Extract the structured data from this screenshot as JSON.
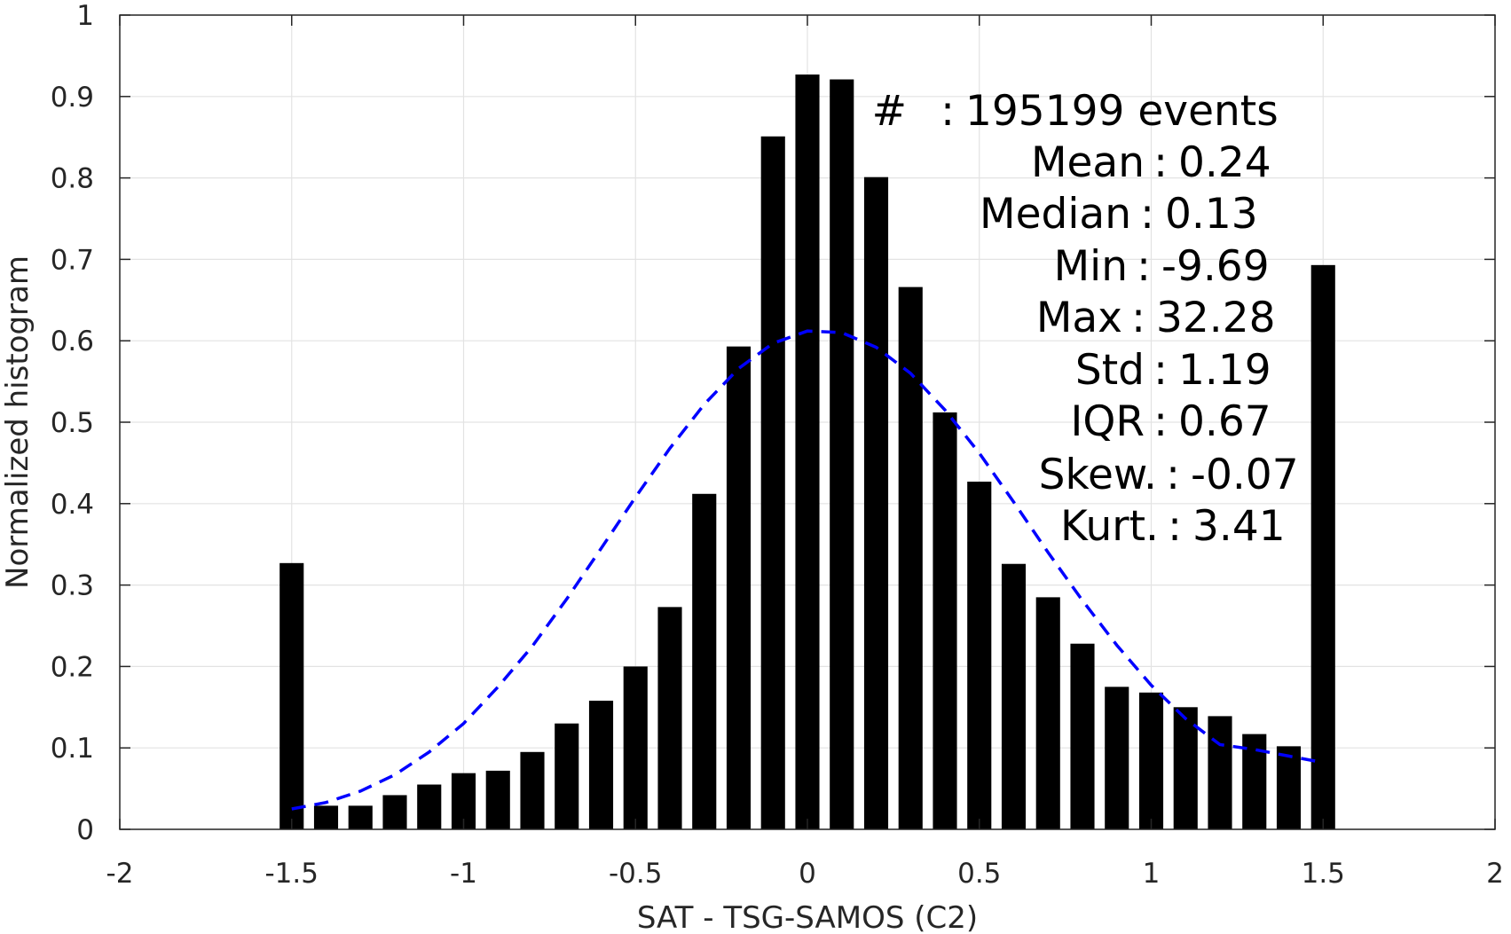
{
  "chart_data": {
    "type": "bar",
    "xlabel": "SAT - TSG-SAMOS (C2)",
    "ylabel": "Normalized histogram",
    "xlim": [
      -2,
      2
    ],
    "ylim": [
      0,
      1
    ],
    "xticks": [
      -2,
      -1.5,
      -1,
      -0.5,
      0,
      0.5,
      1,
      1.5,
      2
    ],
    "yticks": [
      0,
      0.1,
      0.2,
      0.3,
      0.4,
      0.5,
      0.6,
      0.7,
      0.8,
      0.9,
      1
    ],
    "grid": true,
    "bar_width": 0.07,
    "bars": {
      "x": [
        -1.5,
        -1.4,
        -1.3,
        -1.2,
        -1.1,
        -1.0,
        -0.9,
        -0.8,
        -0.7,
        -0.6,
        -0.5,
        -0.4,
        -0.3,
        -0.2,
        -0.1,
        0.0,
        0.1,
        0.2,
        0.3,
        0.4,
        0.5,
        0.6,
        0.7,
        0.8,
        0.9,
        1.0,
        1.1,
        1.2,
        1.3,
        1.4,
        1.5
      ],
      "values": [
        0.327,
        0.029,
        0.029,
        0.042,
        0.055,
        0.069,
        0.072,
        0.095,
        0.13,
        0.158,
        0.2,
        0.273,
        0.412,
        0.593,
        0.851,
        0.927,
        0.921,
        0.801,
        0.666,
        0.512,
        0.427,
        0.326,
        0.285,
        0.228,
        0.175,
        0.168,
        0.15,
        0.139,
        0.117,
        0.102,
        0.693
      ],
      "color": "#000000"
    },
    "fit": {
      "style": "dashed",
      "color": "#0000ff",
      "x": [
        -1.5,
        -1.4,
        -1.3,
        -1.2,
        -1.1,
        -1.0,
        -0.9,
        -0.8,
        -0.7,
        -0.6,
        -0.5,
        -0.4,
        -0.3,
        -0.2,
        -0.1,
        0.0,
        0.1,
        0.2,
        0.3,
        0.4,
        0.5,
        0.6,
        0.7,
        0.8,
        0.9,
        1.0,
        1.1,
        1.2,
        1.3,
        1.4,
        1.5
      ],
      "y": [
        0.025,
        0.033,
        0.047,
        0.067,
        0.095,
        0.13,
        0.175,
        0.225,
        0.283,
        0.345,
        0.408,
        0.468,
        0.522,
        0.566,
        0.597,
        0.612,
        0.61,
        0.592,
        0.56,
        0.515,
        0.462,
        0.402,
        0.34,
        0.281,
        0.226,
        0.177,
        0.136,
        0.104,
        0.098,
        0.09,
        0.082
      ]
    },
    "annotations": [
      {
        "label": "#",
        "sep": ":",
        "value": "195199 events"
      },
      {
        "label": "Mean",
        "sep": ":",
        "value": "0.24"
      },
      {
        "label": "Median",
        "sep": ":",
        "value": "0.13"
      },
      {
        "label": "Min",
        "sep": ":",
        "value": "-9.69"
      },
      {
        "label": "Max",
        "sep": ":",
        "value": "32.28"
      },
      {
        "label": "Std",
        "sep": ":",
        "value": "1.19"
      },
      {
        "label": "IQR",
        "sep": ":",
        "value": "0.67"
      },
      {
        "label": "Skew.",
        "sep": ":",
        "value": "-0.07"
      },
      {
        "label": "Kurt.",
        "sep": ":",
        "value": "3.41"
      }
    ]
  }
}
